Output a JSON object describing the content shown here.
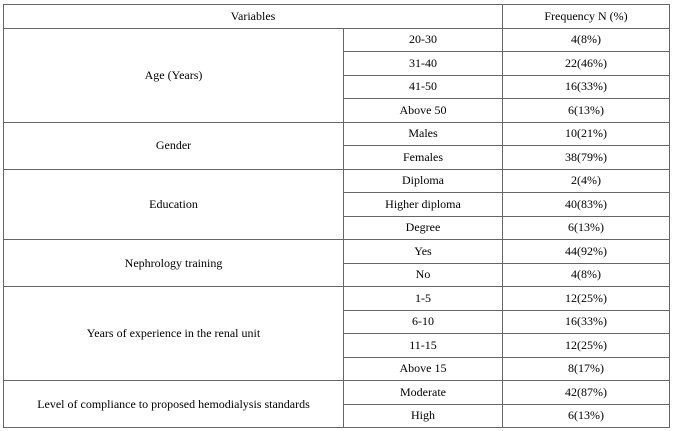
{
  "table": {
    "header": [
      "Variables",
      "Frequency N (%)"
    ],
    "groups": [
      {
        "variable": "Age (Years)",
        "rows": [
          [
            "20-30",
            "4(8%)"
          ],
          [
            "31-40",
            "22(46%)"
          ],
          [
            "41-50",
            "16(33%)"
          ],
          [
            "Above 50",
            "6(13%)"
          ]
        ]
      },
      {
        "variable": "Gender",
        "rows": [
          [
            "Males",
            "10(21%)"
          ],
          [
            "Females",
            "38(79%)"
          ]
        ]
      },
      {
        "variable": "Education",
        "rows": [
          [
            "Diploma",
            "2(4%)"
          ],
          [
            "Higher diploma",
            "40(83%)"
          ],
          [
            "Degree",
            "6(13%)"
          ]
        ]
      },
      {
        "variable": "Nephrology training",
        "rows": [
          [
            "Yes",
            "44(92%)"
          ],
          [
            "No",
            "4(8%)"
          ]
        ]
      },
      {
        "variable": "Years of experience in the renal unit",
        "rows": [
          [
            "1-5",
            "12(25%)"
          ],
          [
            "6-10",
            "16(33%)"
          ],
          [
            "11-15",
            "12(25%)"
          ],
          [
            "Above 15",
            "8(17%)"
          ]
        ]
      },
      {
        "variable": "Level of compliance to proposed hemodialysis standards",
        "rows": [
          [
            "Moderate",
            "42(87%)"
          ],
          [
            "High",
            "6(13%)"
          ]
        ]
      }
    ]
  }
}
